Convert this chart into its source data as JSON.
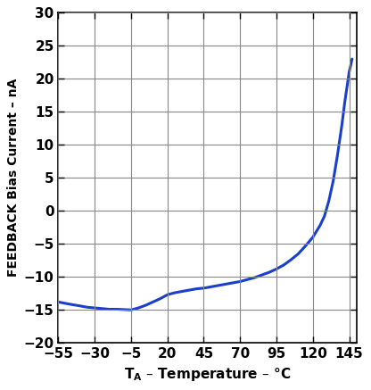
{
  "ylabel": "FEEDBACK Bias Current – nA",
  "xlim": [
    -55,
    150
  ],
  "ylim": [
    -20,
    30
  ],
  "xticks": [
    -55,
    -30,
    -5,
    20,
    45,
    70,
    95,
    120,
    145
  ],
  "yticks": [
    -20,
    -15,
    -10,
    -5,
    0,
    5,
    10,
    15,
    20,
    25,
    30
  ],
  "line_color": "#1a3fcc",
  "line_width": 2.2,
  "x_data": [
    -55,
    -48,
    -40,
    -35,
    -30,
    -25,
    -20,
    -15,
    -10,
    -5,
    0,
    5,
    10,
    15,
    20,
    25,
    30,
    35,
    40,
    45,
    50,
    55,
    60,
    65,
    70,
    75,
    80,
    85,
    90,
    95,
    100,
    105,
    110,
    115,
    120,
    125,
    128,
    131,
    134,
    137,
    140,
    142,
    144,
    145,
    147
  ],
  "y_data": [
    -13.8,
    -14.1,
    -14.4,
    -14.6,
    -14.7,
    -14.8,
    -14.9,
    -14.9,
    -14.95,
    -15.0,
    -14.7,
    -14.3,
    -13.8,
    -13.3,
    -12.7,
    -12.4,
    -12.2,
    -12.0,
    -11.8,
    -11.7,
    -11.5,
    -11.3,
    -11.1,
    -10.9,
    -10.7,
    -10.4,
    -10.1,
    -9.7,
    -9.3,
    -8.8,
    -8.2,
    -7.4,
    -6.5,
    -5.3,
    -4.0,
    -2.2,
    -0.8,
    1.5,
    4.5,
    8.5,
    13.0,
    16.5,
    19.5,
    21.0,
    23.0
  ],
  "background_color": "#ffffff",
  "grid_color": "#888888",
  "tick_label_size": 11,
  "xlabel_size": 11,
  "ylabel_size": 10
}
